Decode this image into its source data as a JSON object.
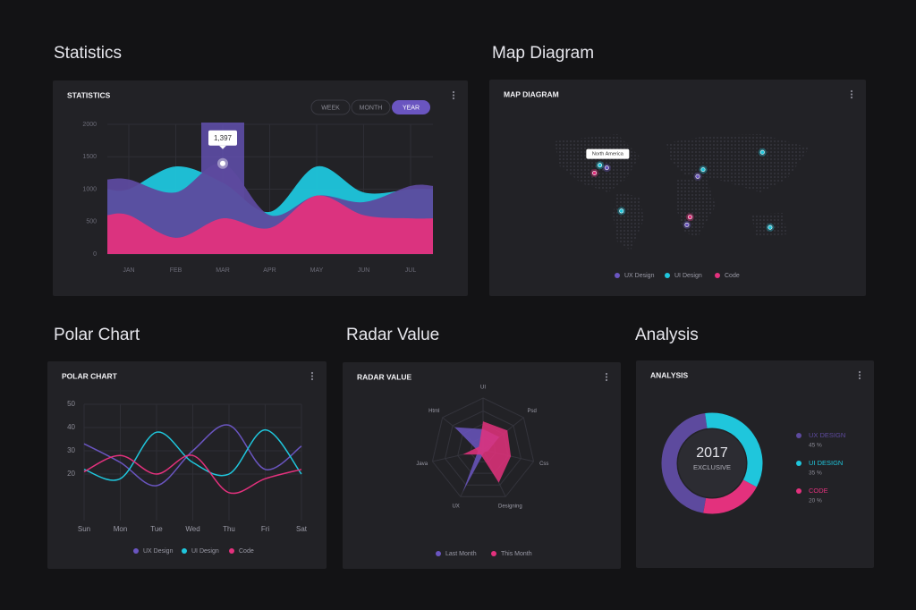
{
  "chart_data": [
    {
      "type": "area",
      "section_title": "Statistics",
      "title": "STATISTICS",
      "tabs": [
        "WEEK",
        "MONTH",
        "YEAR"
      ],
      "active_tab": 2,
      "categories": [
        "JAN",
        "FEB",
        "MAR",
        "APR",
        "MAY",
        "JUN",
        "JUL"
      ],
      "ylim": [
        0,
        2000
      ],
      "yticks": [
        0,
        500,
        1000,
        1500,
        2000
      ],
      "grid": true,
      "series": [
        {
          "color": "#1fc6dc",
          "values": [
            1000,
            1350,
            1100,
            650,
            1350,
            950,
            1000
          ]
        },
        {
          "color": "#5d4a9e",
          "values": [
            1150,
            950,
            1397,
            600,
            900,
            800,
            1050
          ]
        },
        {
          "color": "#e3317d",
          "values": [
            600,
            250,
            550,
            400,
            900,
            600,
            550
          ]
        }
      ],
      "annotation": {
        "value": 1397,
        "label": "1,397"
      }
    },
    {
      "type": "map",
      "section_title": "Map Diagram",
      "title": "MAP DIAGRAM",
      "annotation": "North America",
      "xlim": [
        -180,
        180
      ],
      "ylim": [
        -60,
        85
      ],
      "series": [
        {
          "name": "UX Design",
          "color": "#6a55c0",
          "lon": [
            -89,
            29,
            15
          ],
          "lat": [
            46,
            36,
            -20
          ]
        },
        {
          "name": "UI Design",
          "color": "#1fc6dc",
          "lon": [
            -98,
            36,
            113,
            -70,
            123
          ],
          "lat": [
            49,
            44,
            64,
            -4,
            -23
          ]
        },
        {
          "name": "Code",
          "color": "#e3317d",
          "lon": [
            -105,
            19
          ],
          "lat": [
            40,
            -11
          ]
        }
      ]
    },
    {
      "type": "line",
      "section_title": "Polar Chart",
      "title": "POLAR CHART",
      "categories": [
        "Sun",
        "Mon",
        "Tue",
        "Wed",
        "Thu",
        "Fri",
        "Sat"
      ],
      "ylim": [
        0,
        50
      ],
      "yticks": [
        20,
        30,
        40,
        50
      ],
      "grid": true,
      "series": [
        {
          "name": "UX Design",
          "color": "#6a55c0",
          "values": [
            33,
            25,
            15,
            30,
            41,
            22,
            32
          ]
        },
        {
          "name": "UI Design",
          "color": "#1fc6dc",
          "values": [
            22,
            18,
            38,
            25,
            20,
            39,
            20
          ]
        },
        {
          "name": "Code",
          "color": "#e3317d",
          "values": [
            21,
            28,
            20,
            28,
            12,
            18,
            22
          ]
        }
      ]
    },
    {
      "type": "radar",
      "section_title": "Radar Value",
      "title": "RADAR VALUE",
      "axes": [
        "UI",
        "Psd",
        "Css",
        "Designing",
        "UX",
        "Java",
        "Html"
      ],
      "rlim": [
        0,
        100
      ],
      "series": [
        {
          "name": "Last Month",
          "color": "#6a55c0",
          "values": [
            40,
            40,
            10,
            5,
            90,
            10,
            70
          ]
        },
        {
          "name": "This Month",
          "color": "#e3317d",
          "values": [
            55,
            60,
            55,
            70,
            10,
            40,
            10
          ]
        }
      ]
    },
    {
      "type": "donut",
      "section_title": "Analysis",
      "title": "ANALYSIS",
      "center_title": "2017",
      "center_subtitle": "EXCLUSIVE",
      "categories": [
        "UX DESIGN",
        "UI DESIGN",
        "CODE"
      ],
      "values": [
        45,
        35,
        20
      ],
      "value_labels": [
        "45 %",
        "35 %",
        "20 %"
      ],
      "colors": [
        "#5d4a9e",
        "#1fc6dc",
        "#e3317d"
      ]
    }
  ]
}
